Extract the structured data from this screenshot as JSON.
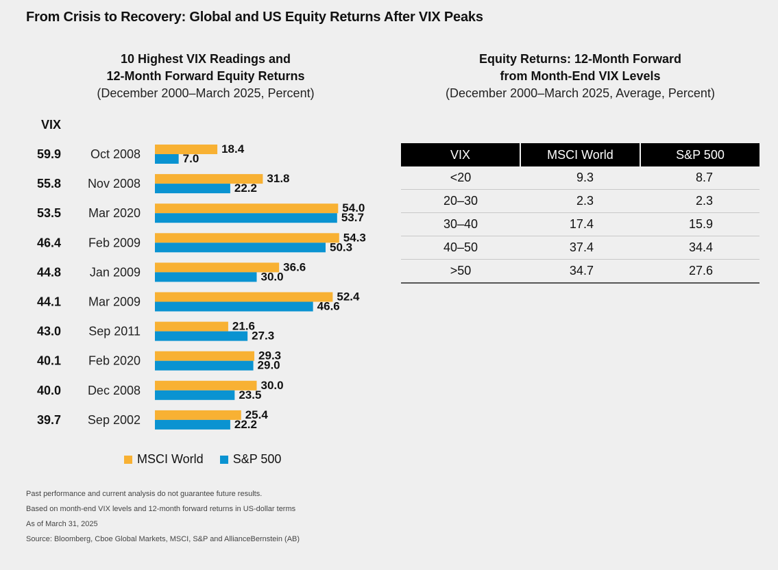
{
  "title": "From Crisis to Recovery: Global and US Equity Returns After VIX Peaks",
  "chart_data": {
    "type": "bar",
    "orientation": "horizontal",
    "title_line1": "10 Highest VIX Readings and",
    "title_line2": "12-Month Forward Equity Returns",
    "subtitle": "(December 2000–March 2025, Percent)",
    "vix_header": "VIX",
    "categories": [
      "Oct 2008",
      "Nov 2008",
      "Mar 2020",
      "Feb 2009",
      "Jan 2009",
      "Mar 2009",
      "Sep 2011",
      "Feb 2020",
      "Dec 2008",
      "Sep 2002"
    ],
    "vix": [
      "59.9",
      "55.8",
      "53.5",
      "46.4",
      "44.8",
      "44.1",
      "43.0",
      "40.1",
      "40.0",
      "39.7"
    ],
    "series": [
      {
        "name": "MSCI World",
        "color": "#f8b133",
        "values": [
          18.4,
          31.8,
          54.0,
          54.3,
          36.6,
          52.4,
          21.6,
          29.3,
          30.0,
          25.4
        ]
      },
      {
        "name": "S&P 500",
        "color": "#0a93d1",
        "values": [
          7.0,
          22.2,
          53.7,
          50.3,
          30.0,
          46.6,
          27.3,
          29.0,
          23.5,
          22.2
        ]
      }
    ],
    "legend": "bottom"
  },
  "table": {
    "title_line1": "Equity Returns: 12-Month Forward",
    "title_line2": "from Month-End VIX Levels",
    "subtitle": "(December 2000–March 2025, Average, Percent)",
    "columns": [
      "VIX",
      "MSCI World",
      "S&P 500"
    ],
    "rows": [
      [
        "<20",
        "9.3",
        "8.7"
      ],
      [
        "20–30",
        "2.3",
        "2.3"
      ],
      [
        "30–40",
        "17.4",
        "15.9"
      ],
      [
        "40–50",
        "37.4",
        "34.4"
      ],
      [
        ">50",
        "34.7",
        "27.6"
      ]
    ]
  },
  "notes": [
    "Past performance and current analysis do not guarantee future results.",
    "Based on month-end VIX levels and 12-month forward returns in US-dollar terms",
    "As of March 31, 2025",
    "Source: Bloomberg, Cboe Global Markets, MSCI, S&P and AllianceBernstein (AB)"
  ]
}
